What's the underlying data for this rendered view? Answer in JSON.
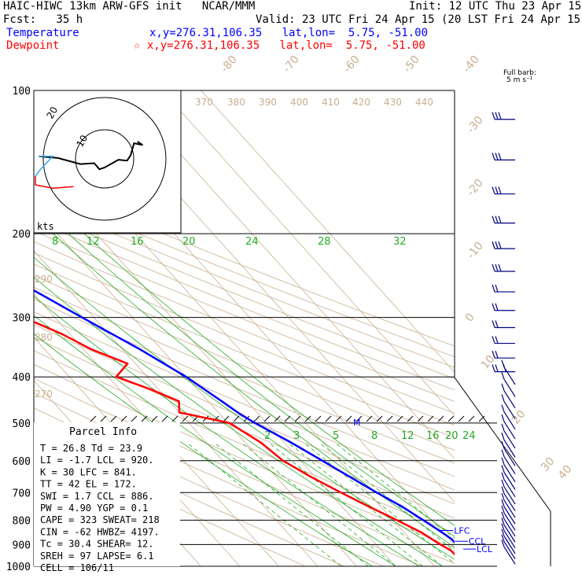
{
  "header": {
    "model": "HAIC-HIWC 13km ARW-GFS init   NCAR/MMM",
    "init": "Init: 12 UTC Thu 23 Apr 15",
    "fcst": "Fcst:   35 h",
    "valid": "Valid: 23 UTC Fri 24 Apr 15 (20 LST Fri 24 Apr 15)",
    "temperature_label": "Temperature",
    "temperature_pos": "x,y=276.31,106.35   lat,lon=  5.75, -51.00",
    "dewpoint_label": "Dewpoint",
    "dewpoint_pos": "☆ x,y=276.31,106.35   lat,lon=  5.75, -51.00"
  },
  "barb_legend": {
    "line1": "Full barb:",
    "line2": "5 m s⁻¹"
  },
  "hodograph": {
    "unit": "kts",
    "ring_labels": [
      "10",
      "20"
    ]
  },
  "parcel_info": {
    "title": "Parcel Info",
    "rows": [
      "T  =   26.8  Td =  23.9",
      "LI =   -1.7  LCL =  920.",
      "K  =     30  LFC =  841.",
      "TT =     42  EL  =  172.",
      "SWI =   1.7  CCL =  886.",
      "PW =   4.90  YGP =   0.1",
      "CAPE =  323  SWEAT=  218",
      "CIN =   -62  HWBZ= 4197.",
      "Tc =   30.4  SHEAR=  12.",
      "SREH =   97  LAPSE=  6.1",
      "CELL = 106/11"
    ]
  },
  "chart_data": {
    "type": "line",
    "title": "",
    "xlabel": "",
    "ylabel": "",
    "pressure_axis": {
      "levels": [
        100,
        200,
        300,
        400,
        500,
        600,
        700,
        800,
        900,
        1000
      ],
      "scale": "log",
      "range": [
        100,
        1000
      ]
    },
    "temperature_axis_labels": [
      "-80",
      "-70",
      "-60",
      "-50",
      "-40",
      "-30",
      "-20",
      "-10",
      "0",
      "10",
      "20",
      "30",
      "40"
    ],
    "theta_labels": [
      "370",
      "380",
      "390",
      "400",
      "410",
      "420",
      "430",
      "440",
      "290",
      "280",
      "270"
    ],
    "theta_e_labels": [
      "8",
      "12",
      "16",
      "20",
      "24",
      "28",
      "32"
    ],
    "mixing_ratio_labels": [
      "2",
      "3",
      "5",
      "8",
      "12",
      "16",
      "20",
      "24"
    ],
    "level_labels": [
      "EL",
      "LFC",
      "CCL",
      "LCL"
    ],
    "level_pressures": [
      172,
      841,
      886,
      920
    ],
    "series": [
      {
        "name": "Temperature",
        "color": "#0000ff",
        "points": [
          [
            1000,
            26.8
          ],
          [
            975,
            24.6
          ],
          [
            950,
            22.4
          ],
          [
            925,
            21.0
          ],
          [
            900,
            20.8
          ],
          [
            875,
            20.6
          ],
          [
            850,
            19.8
          ],
          [
            800,
            17.8
          ],
          [
            750,
            15.5
          ],
          [
            700,
            12.2
          ],
          [
            650,
            9.0
          ],
          [
            600,
            5.6
          ],
          [
            550,
            1.8
          ],
          [
            500,
            -3.0
          ],
          [
            475,
            -5.0
          ],
          [
            450,
            -6.5
          ],
          [
            400,
            -10.0
          ],
          [
            350,
            -15.5
          ],
          [
            300,
            -23.0
          ],
          [
            250,
            -31.5
          ],
          [
            200,
            -43.0
          ],
          [
            175,
            -50.5
          ],
          [
            150,
            -58.0
          ],
          [
            125,
            -68.0
          ],
          [
            110,
            -73.0
          ],
          [
            100,
            -73.0
          ]
        ]
      },
      {
        "name": "Dewpoint",
        "color": "#ff0000",
        "points": [
          [
            1000,
            23.9
          ],
          [
            975,
            23.6
          ],
          [
            950,
            18.0
          ],
          [
            925,
            17.8
          ],
          [
            900,
            16.5
          ],
          [
            850,
            14.5
          ],
          [
            800,
            11.0
          ],
          [
            750,
            7.0
          ],
          [
            700,
            3.0
          ],
          [
            650,
            -1.0
          ],
          [
            600,
            -4.5
          ],
          [
            550,
            -6.0
          ],
          [
            500,
            -9.5
          ],
          [
            475,
            -20.0
          ],
          [
            450,
            -17.5
          ],
          [
            425,
            -22.0
          ],
          [
            400,
            -28.0
          ],
          [
            375,
            -22.0
          ],
          [
            350,
            -28.0
          ],
          [
            325,
            -32.0
          ],
          [
            300,
            -38.0
          ],
          [
            275,
            -40.0
          ],
          [
            250,
            -46.0
          ],
          [
            225,
            -52.0
          ],
          [
            200,
            -61.0
          ],
          [
            175,
            -70.0
          ],
          [
            160,
            -76.0
          ],
          [
            145,
            -82.0
          ],
          [
            130,
            -90.0
          ],
          [
            115,
            -93.0
          ],
          [
            100,
            -94.0
          ]
        ]
      }
    ],
    "hodograph_trace": [
      [
        -7.6,
        0.3
      ],
      [
        -5.4,
        0.1
      ],
      [
        -2.8,
        -0.6
      ],
      [
        -1.2,
        -0.5
      ],
      [
        -0.6,
        -1.2
      ],
      [
        0,
        -1.0
      ],
      [
        1.6,
        -0.1
      ],
      [
        2.6,
        -0.2
      ],
      [
        3.0,
        0.4
      ],
      [
        3.4,
        1.8
      ],
      [
        4.4,
        1.6
      ],
      [
        3.8,
        2.0
      ]
    ],
    "hodograph_cyan": [
      [
        -7.6,
        0.3
      ],
      [
        -6.0,
        0.3
      ],
      [
        -7.4,
        -1.2
      ],
      [
        -8.0,
        -2.0
      ]
    ],
    "hodograph_red": [
      [
        -8.0,
        -2.0
      ],
      [
        -8.0,
        -3.0
      ],
      [
        -6.0,
        -3.4
      ],
      [
        -3.6,
        -3.2
      ]
    ]
  }
}
